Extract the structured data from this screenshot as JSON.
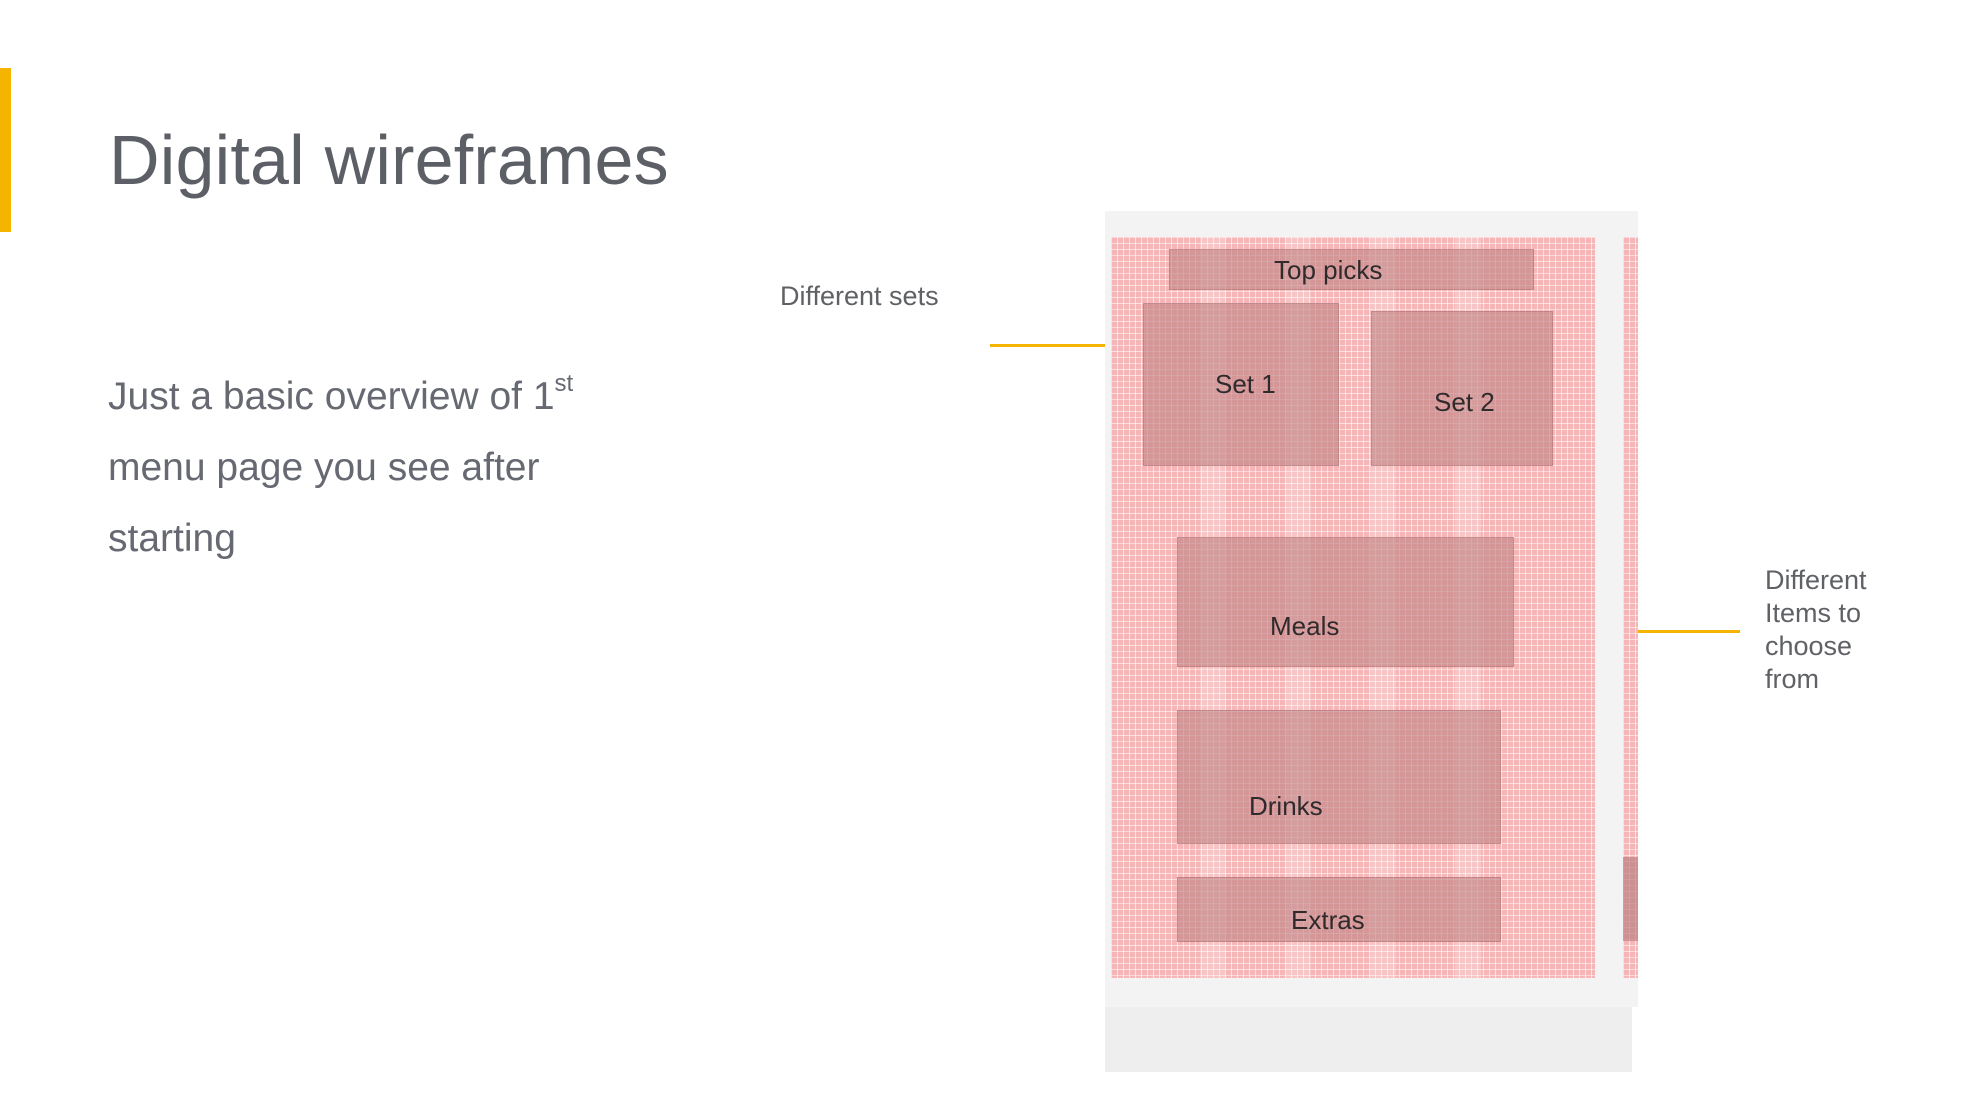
{
  "slide": {
    "title": "Digital wireframes",
    "body": {
      "text": "Just a basic overview of 1",
      "superscript": "st",
      "line2": "menu  page you see after",
      "line3": "starting"
    },
    "annotations": {
      "different_sets": "Different sets",
      "different_items": {
        "line1": "Different",
        "line2": "Items to",
        "line3": "choose",
        "line4": "from"
      }
    },
    "colors": {
      "accent": "#f5b400",
      "grid": "#f6b5b6",
      "block": "#bf8284"
    }
  },
  "wireframe": {
    "blocks": {
      "top_picks": "Top picks",
      "set_1": "Set 1",
      "set_2": "Set 2",
      "meals": "Meals",
      "drinks": "Drinks",
      "extras": "Extras"
    }
  }
}
